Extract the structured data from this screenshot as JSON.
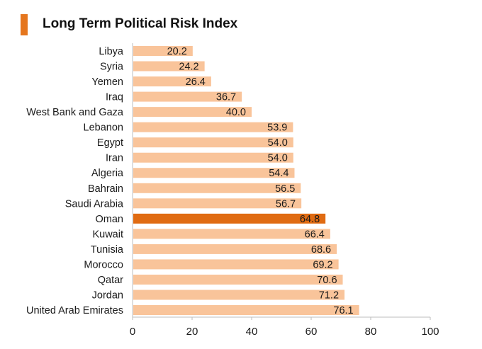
{
  "chart_data": {
    "type": "bar",
    "orientation": "horizontal",
    "title": "Long Term Political Risk Index",
    "categories": [
      "Libya",
      "Syria",
      "Yemen",
      "Iraq",
      "West Bank and Gaza",
      "Lebanon",
      "Egypt",
      "Iran",
      "Algeria",
      "Bahrain",
      "Saudi Arabia",
      "Oman",
      "Kuwait",
      "Tunisia",
      "Morocco",
      "Qatar",
      "Jordan",
      "United Arab Emirates"
    ],
    "values": [
      20.2,
      24.2,
      26.4,
      36.7,
      40.0,
      53.9,
      54.0,
      54.0,
      54.4,
      56.5,
      56.7,
      64.8,
      66.4,
      68.6,
      69.2,
      70.6,
      71.2,
      76.1
    ],
    "value_labels": [
      "20.2",
      "24.2",
      "26.4",
      "36.7",
      "40.0",
      "53.9",
      "54.0",
      "54.0",
      "54.4",
      "56.5",
      "56.7",
      "64.8",
      "66.4",
      "68.6",
      "69.2",
      "70.6",
      "71.2",
      "76.1"
    ],
    "highlight": "Oman",
    "xlim": [
      0,
      100
    ],
    "xticks": [
      "0",
      "20",
      "40",
      "60",
      "80",
      "100"
    ],
    "xlabel": "",
    "ylabel": "",
    "grid": false,
    "colors": {
      "bar": "#f9c49a",
      "highlight": "#e06b12",
      "accent": "#e5761e",
      "axis": "#bdbdbd",
      "text": "#1a1a1a"
    }
  }
}
